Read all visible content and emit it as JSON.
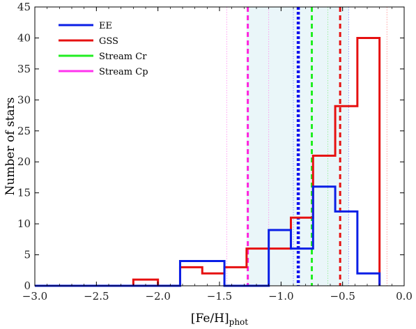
{
  "chart_data": {
    "type": "histogram",
    "xlabel": "[Fe/H]",
    "xlabel_sub": "phot",
    "ylabel": "Number of stars",
    "xlim": [
      -3.0,
      0.0
    ],
    "ylim": [
      0,
      45
    ],
    "xticks": [
      "−3.0",
      "−2.5",
      "−2.0",
      "−1.5",
      "−1.0",
      "−0.5",
      "0.0"
    ],
    "xtick_values": [
      -3.0,
      -2.5,
      -2.0,
      -1.5,
      -1.0,
      -0.5,
      0.0
    ],
    "yticks": [
      "0",
      "5",
      "10",
      "15",
      "20",
      "25",
      "30",
      "35",
      "40",
      "45"
    ],
    "ytick_values": [
      0,
      5,
      10,
      15,
      20,
      25,
      30,
      35,
      40,
      45
    ],
    "legend": "top-left",
    "series": [
      {
        "name": "EE",
        "color": "#0a1ee6",
        "bin_edges": [
          -3.0,
          -2.2,
          -2.0,
          -1.82,
          -1.64,
          -1.46,
          -1.28,
          -1.1,
          -0.92,
          -0.74,
          -0.56,
          -0.38,
          -0.2
        ],
        "counts": [
          0,
          0,
          0,
          4,
          4,
          0,
          0,
          9,
          6,
          16,
          12,
          2
        ]
      },
      {
        "name": "GSS",
        "color": "#e61010",
        "bin_edges": [
          -3.0,
          -2.2,
          -2.0,
          -1.82,
          -1.64,
          -1.46,
          -1.28,
          -1.1,
          -0.92,
          -0.74,
          -0.56,
          -0.38,
          -0.2
        ],
        "counts": [
          0,
          1,
          0,
          3,
          2,
          3,
          6,
          6,
          11,
          21,
          29,
          40
        ]
      },
      {
        "name": "Stream Cr",
        "color": "#22ee22"
      },
      {
        "name": "Stream Cp",
        "color": "#ff33ee"
      }
    ],
    "shaded_region": {
      "x": [
        -1.28,
        -0.45
      ],
      "color": "#eaf6f9"
    },
    "vertical_lines": [
      {
        "x": -1.27,
        "color": "#ff22dd",
        "style": "dashed",
        "weight": "thick"
      },
      {
        "x": -0.86,
        "color": "#1111ee",
        "style": "dotted",
        "weight": "thick"
      },
      {
        "x": -0.75,
        "color": "#22ee22",
        "style": "dashed",
        "weight": "thick"
      },
      {
        "x": -0.52,
        "color": "#e61010",
        "style": "dashed",
        "weight": "thick"
      },
      {
        "x": -1.44,
        "color": "#ff88ee",
        "style": "dotted",
        "weight": "thin"
      },
      {
        "x": -1.1,
        "color": "#ff88ee",
        "style": "dotted",
        "weight": "thin"
      },
      {
        "x": -0.9,
        "color": "#8888ff",
        "style": "dotted",
        "weight": "thin"
      },
      {
        "x": -0.62,
        "color": "#88ee88",
        "style": "dotted",
        "weight": "thin"
      },
      {
        "x": -0.45,
        "color": "#8888ff",
        "style": "dotted",
        "weight": "thin"
      },
      {
        "x": -0.14,
        "color": "#ff8888",
        "style": "dotted",
        "weight": "thin"
      }
    ]
  }
}
